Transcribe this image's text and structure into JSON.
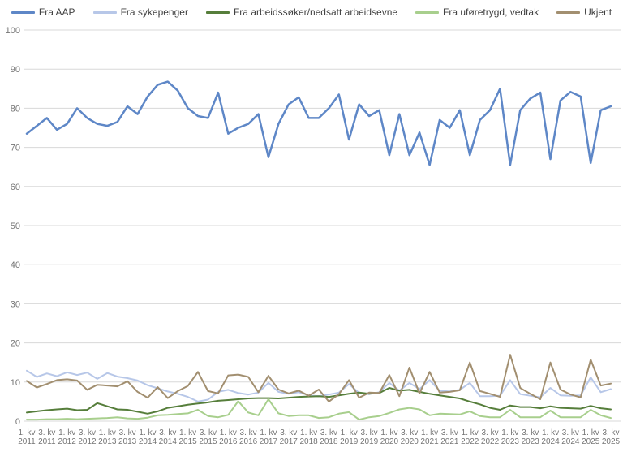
{
  "chart_data": {
    "type": "line",
    "title": "",
    "xlabel": "",
    "ylabel": "",
    "ylim": [
      0,
      100
    ],
    "grid": true,
    "legend_position": "top",
    "y_axis": {
      "min": 0,
      "max": 100,
      "step": 10,
      "ticks": [
        0,
        10,
        20,
        30,
        40,
        50,
        60,
        70,
        80,
        90,
        100
      ]
    },
    "x_tick_labels": [
      "1. kv 2011",
      "3. kv 2011",
      "1. kv 2012",
      "3. kv 2012",
      "1. kv 2013",
      "3. kv 2013",
      "1. kv 2014",
      "3. kv 2014",
      "1. kv 2015",
      "3. kv 2015",
      "1. kv 2016",
      "3. kv 2016",
      "1. kv 2017",
      "3. kv 2017",
      "1. kv 2018",
      "3. kv 2018",
      "1. kv 2019",
      "3. kv 2019",
      "1. kv 2020",
      "3. kv 2020",
      "1. kv 2021",
      "3. kv 2021",
      "1. kv 2022",
      "3. kv 2022",
      "1. kv 2023",
      "3. kv 2023",
      "1. kv 2024",
      "3. kv 2024",
      "1. kv 2025",
      "3. kv 2025"
    ],
    "x_values": [
      "1. kv 2011",
      "2. kv 2011",
      "3. kv 2011",
      "4. kv 2011",
      "1. kv 2012",
      "2. kv 2012",
      "3. kv 2012",
      "4. kv 2012",
      "1. kv 2013",
      "2. kv 2013",
      "3. kv 2013",
      "4. kv 2013",
      "1. kv 2014",
      "2. kv 2014",
      "3. kv 2014",
      "4. kv 2014",
      "1. kv 2015",
      "2. kv 2015",
      "3. kv 2015",
      "4. kv 2015",
      "1. kv 2016",
      "2. kv 2016",
      "3. kv 2016",
      "4. kv 2016",
      "1. kv 2017",
      "2. kv 2017",
      "3. kv 2017",
      "4. kv 2017",
      "1. kv 2018",
      "2. kv 2018",
      "3. kv 2018",
      "4. kv 2018",
      "1. kv 2019",
      "2. kv 2019",
      "3. kv 2019",
      "4. kv 2019",
      "1. kv 2020",
      "2. kv 2020",
      "3. kv 2020",
      "4. kv 2020",
      "1. kv 2021",
      "2. kv 2021",
      "3. kv 2021",
      "4. kv 2021",
      "1. kv 2022",
      "2. kv 2022",
      "3. kv 2022",
      "4. kv 2022",
      "1. kv 2023",
      "2. kv 2023",
      "3. kv 2023",
      "4. kv 2023",
      "1. kv 2024",
      "2. kv 2024",
      "3. kv 2024",
      "4. kv 2024",
      "1. kv 2025",
      "2. kv 2025",
      "3. kv 2025"
    ],
    "series": [
      {
        "name": "Fra AAP",
        "color": "#5e87c7",
        "stroke_width": 2.5,
        "values": [
          73.5,
          75.5,
          77.5,
          74.5,
          76,
          80,
          77.5,
          76,
          75.5,
          76.5,
          80.5,
          78.5,
          83,
          86,
          86.8,
          84.5,
          80,
          78,
          77.5,
          84,
          73.5,
          75,
          76,
          78.5,
          67.5,
          76,
          81,
          82.8,
          77.5,
          77.5,
          80,
          83.5,
          72,
          81,
          78,
          79.5,
          68,
          78.5,
          68,
          73.8,
          65.5,
          77,
          75,
          79.5,
          68,
          77,
          79.5,
          85,
          65.5,
          79.5,
          82.5,
          84,
          67,
          82,
          84.2,
          83,
          66,
          79.5,
          80.5
        ]
      },
      {
        "name": "Fra sykepenger",
        "color": "#b7c7e8",
        "stroke_width": 2,
        "values": [
          12.9,
          11.3,
          12.2,
          11.5,
          12.5,
          11.8,
          12.4,
          10.8,
          12.3,
          11.4,
          11,
          10.4,
          9.2,
          8.4,
          7.6,
          7,
          6.2,
          5,
          5.5,
          7.5,
          8,
          7.2,
          6.8,
          7.3,
          9.8,
          7.5,
          7,
          7.4,
          6.6,
          6.4,
          6.8,
          7.3,
          9.5,
          7.2,
          6.9,
          7.4,
          9.8,
          7.8,
          9.8,
          8.2,
          10.5,
          7.8,
          7.6,
          8,
          9.8,
          6.4,
          6.4,
          6.5,
          10.5,
          6.9,
          6.5,
          6.1,
          8.5,
          6.6,
          6.5,
          6.6,
          11.2,
          7.4,
          8.2
        ]
      },
      {
        "name": "Fra arbeidssøker/nedsatt arbeidsevne",
        "color": "#567e3b",
        "stroke_width": 2,
        "values": [
          2.2,
          2.5,
          2.8,
          3,
          3.2,
          2.8,
          2.9,
          4.6,
          3.8,
          3,
          2.9,
          2.4,
          1.9,
          2.5,
          3.4,
          3.8,
          4.2,
          4.5,
          4.8,
          5.2,
          5.4,
          5.6,
          5.8,
          5.9,
          5.9,
          5.8,
          6,
          6.2,
          6.3,
          6.4,
          6.2,
          6.6,
          7,
          7.3,
          7,
          7.2,
          8.5,
          7.8,
          8,
          7.5,
          7,
          6.6,
          6.2,
          5.8,
          5,
          4.3,
          3.4,
          2.9,
          4,
          3.6,
          3.6,
          3.3,
          3.8,
          3.4,
          3.3,
          3.2,
          3.9,
          3.3,
          3
        ]
      },
      {
        "name": "Fra uføretrygd, vedtak",
        "color": "#a8cf8d",
        "stroke_width": 2,
        "values": [
          0.4,
          0.4,
          0.5,
          0.5,
          0.6,
          0.5,
          0.6,
          0.7,
          0.8,
          1,
          0.7,
          0.6,
          0.9,
          1.5,
          1.6,
          1.8,
          2,
          2.9,
          1.3,
          1,
          1.6,
          5.1,
          2.2,
          1.5,
          5.6,
          2,
          1.3,
          1.5,
          1.5,
          0.8,
          1,
          1.9,
          2.3,
          0.4,
          1,
          1.3,
          2.1,
          3,
          3.4,
          3,
          1.5,
          1.9,
          1.8,
          1.7,
          2.5,
          1.3,
          1,
          1,
          2.9,
          1,
          1,
          1,
          2.7,
          1,
          1,
          1,
          2.9,
          1.5,
          0.8
        ]
      },
      {
        "name": "Ukjent",
        "color": "#a28f70",
        "stroke_width": 2,
        "values": [
          10.3,
          8.6,
          9.5,
          10.5,
          10.7,
          10.4,
          8,
          9.3,
          9.1,
          8.9,
          10.2,
          7.5,
          6,
          8.7,
          5.9,
          7.7,
          9,
          12.6,
          7.7,
          7.1,
          11.7,
          11.9,
          11.3,
          7.4,
          11.6,
          8.1,
          7.1,
          7.8,
          6.5,
          8.1,
          5,
          6.9,
          10.5,
          6,
          7.3,
          7.2,
          11.8,
          6.4,
          13.7,
          7.1,
          12.6,
          7.3,
          7.5,
          7.9,
          15,
          7.7,
          7,
          6.2,
          17,
          8.5,
          7,
          5.6,
          15,
          8.1,
          6.8,
          6.1,
          15.7,
          9.1,
          9.6
        ]
      }
    ],
    "colors": {
      "grid": "#d8d8d8",
      "tick_text": "#757575",
      "legend_text": "#404040",
      "background": "#ffffff"
    }
  }
}
